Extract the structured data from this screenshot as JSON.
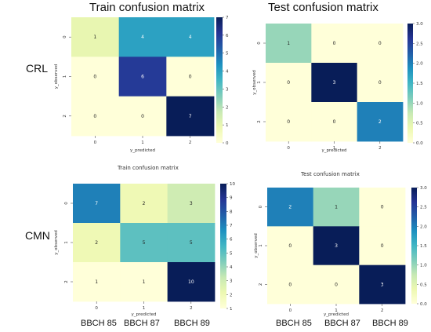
{
  "row_labels": [
    "CRL",
    "CMN"
  ],
  "column_labels": [
    "BBCH 85",
    "BBCH 87",
    "BBCH 89"
  ],
  "chart_data": [
    {
      "type": "heatmap",
      "title": "Train confusion matrix",
      "xlabel": "y_predicted",
      "ylabel": "y_observed",
      "x_categories": [
        "0",
        "1",
        "2"
      ],
      "y_categories": [
        "0",
        "1",
        "2"
      ],
      "values": [
        [
          1,
          4,
          4
        ],
        [
          0,
          6,
          0
        ],
        [
          0,
          0,
          7
        ]
      ],
      "colorbar": {
        "min": 0,
        "max": 7,
        "ticks": [
          "0",
          "1",
          "2",
          "3",
          "4",
          "5",
          "6",
          "7"
        ]
      },
      "colormap": "YlGnBu"
    },
    {
      "type": "heatmap",
      "title": "Test confusion matrix",
      "xlabel": "y_predicted",
      "ylabel": "y_observed",
      "x_categories": [
        "0",
        "1",
        "2"
      ],
      "y_categories": [
        "0",
        "1",
        "2"
      ],
      "values": [
        [
          1,
          0,
          0
        ],
        [
          0,
          3,
          0
        ],
        [
          0,
          0,
          2
        ]
      ],
      "colorbar": {
        "min": 0,
        "max": 3,
        "ticks": [
          "0.0",
          "0.5",
          "1.0",
          "1.5",
          "2.0",
          "2.5",
          "3.0"
        ]
      },
      "colormap": "YlGnBu"
    },
    {
      "type": "heatmap",
      "title": "Train confusion matrix",
      "xlabel": "y_predicted",
      "ylabel": "y_observed",
      "x_categories": [
        "0",
        "1",
        "2"
      ],
      "y_categories": [
        "0",
        "1",
        "2"
      ],
      "values": [
        [
          7,
          2,
          3
        ],
        [
          2,
          5,
          5
        ],
        [
          1,
          1,
          10
        ]
      ],
      "colorbar": {
        "min": 1,
        "max": 10,
        "ticks": [
          "1",
          "2",
          "3",
          "4",
          "5",
          "6",
          "7",
          "8",
          "9",
          "10"
        ]
      },
      "colormap": "YlGnBu"
    },
    {
      "type": "heatmap",
      "title": "Test confusion matrix",
      "xlabel": "y_predicted",
      "ylabel": "y_observed",
      "x_categories": [
        "0",
        "1",
        "2"
      ],
      "y_categories": [
        "0",
        "1",
        "2"
      ],
      "values": [
        [
          2,
          1,
          0
        ],
        [
          0,
          3,
          0
        ],
        [
          0,
          0,
          3
        ]
      ],
      "colorbar": {
        "min": 0,
        "max": 3,
        "ticks": [
          "0.0",
          "0.5",
          "1.0",
          "1.5",
          "2.0",
          "2.5",
          "3.0"
        ]
      },
      "colormap": "YlGnBu"
    }
  ]
}
